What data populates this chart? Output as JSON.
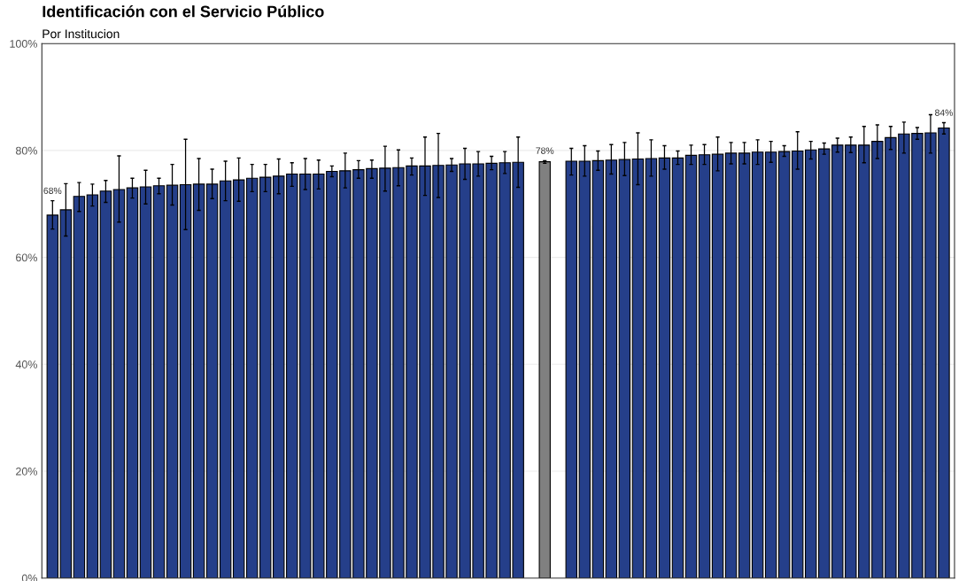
{
  "chart_data": {
    "type": "bar",
    "title": "Identificación con el Servicio Público",
    "subtitle": "Por Institucion",
    "categories": [
      null,
      null,
      null,
      null,
      null,
      null,
      null,
      null,
      null,
      null,
      null,
      null,
      null,
      null,
      null,
      null,
      null,
      null,
      null,
      null,
      null,
      null,
      null,
      null,
      null,
      null,
      null,
      null,
      null,
      null,
      null,
      null,
      null,
      null,
      null,
      null,
      null,
      null,
      null,
      null,
      null,
      null,
      null,
      null,
      null,
      null,
      null,
      null,
      null,
      null,
      null,
      null,
      null,
      null,
      null,
      null,
      null,
      null,
      null,
      null,
      null,
      null,
      null,
      null,
      null,
      null,
      null,
      null
    ],
    "values": [
      67.9,
      68.9,
      71.4,
      71.7,
      72.4,
      72.7,
      73.0,
      73.2,
      73.4,
      73.5,
      73.6,
      73.7,
      73.7,
      74.3,
      74.5,
      74.8,
      75.0,
      75.2,
      75.6,
      75.6,
      75.6,
      76.1,
      76.2,
      76.4,
      76.6,
      76.7,
      76.8,
      77.1,
      77.1,
      77.2,
      77.3,
      77.5,
      77.5,
      77.6,
      77.7,
      77.8,
      null,
      77.9,
      null,
      78.0,
      78.0,
      78.1,
      78.2,
      78.3,
      78.4,
      78.5,
      78.6,
      78.6,
      79.1,
      79.2,
      79.3,
      79.5,
      79.5,
      79.7,
      79.7,
      79.8,
      79.9,
      80.1,
      80.3,
      81.0,
      81.0,
      81.0,
      81.7,
      82.4,
      83.1,
      83.2,
      83.3,
      84.2
    ],
    "errors": [
      [
        65.3,
        70.6
      ],
      [
        64.0,
        73.8
      ],
      [
        68.6,
        74.0
      ],
      [
        69.6,
        73.7
      ],
      [
        70.3,
        74.4
      ],
      [
        66.6,
        79.0
      ],
      [
        71.1,
        74.8
      ],
      [
        70.0,
        76.3
      ],
      [
        71.9,
        74.8
      ],
      [
        69.8,
        77.4
      ],
      [
        65.2,
        82.1
      ],
      [
        68.8,
        78.5
      ],
      [
        71.0,
        76.5
      ],
      [
        70.6,
        78.0
      ],
      [
        70.5,
        78.6
      ],
      [
        72.3,
        77.4
      ],
      [
        72.3,
        77.4
      ],
      [
        71.9,
        78.4
      ],
      [
        73.3,
        77.7
      ],
      [
        72.7,
        78.5
      ],
      [
        72.8,
        78.2
      ],
      [
        75.1,
        77.1
      ],
      [
        73.0,
        79.5
      ],
      [
        74.8,
        78.1
      ],
      [
        74.8,
        78.2
      ],
      [
        72.4,
        80.8
      ],
      [
        73.4,
        80.1
      ],
      [
        75.4,
        78.6
      ],
      [
        71.6,
        82.5
      ],
      [
        71.2,
        83.2
      ],
      [
        76.1,
        78.5
      ],
      [
        74.6,
        80.4
      ],
      [
        75.2,
        79.8
      ],
      [
        76.4,
        78.9
      ],
      [
        75.7,
        79.8
      ],
      [
        73.1,
        82.5
      ],
      null,
      [
        77.6,
        78.1
      ],
      null,
      [
        75.4,
        80.4
      ],
      [
        75.2,
        80.9
      ],
      [
        76.3,
        79.9
      ],
      [
        75.6,
        81.1
      ],
      [
        75.3,
        81.5
      ],
      [
        73.6,
        83.3
      ],
      [
        75.2,
        82.0
      ],
      [
        76.5,
        80.9
      ],
      [
        77.4,
        79.9
      ],
      [
        77.4,
        81.0
      ],
      [
        77.4,
        81.1
      ],
      [
        76.2,
        82.5
      ],
      [
        77.5,
        81.5
      ],
      [
        77.5,
        81.5
      ],
      [
        77.4,
        82.0
      ],
      [
        77.8,
        81.7
      ],
      [
        78.9,
        80.9
      ],
      [
        76.5,
        83.5
      ],
      [
        78.4,
        81.7
      ],
      [
        79.3,
        81.4
      ],
      [
        79.7,
        82.3
      ],
      [
        79.6,
        82.5
      ],
      [
        77.7,
        84.5
      ],
      [
        78.5,
        84.8
      ],
      [
        80.2,
        84.5
      ],
      [
        79.5,
        85.3
      ],
      [
        82.1,
        84.3
      ],
      [
        79.5,
        86.7
      ],
      [
        83.1,
        85.2
      ]
    ],
    "colors": [
      "#253f8a",
      "#253f8a",
      "#253f8a",
      "#253f8a",
      "#253f8a",
      "#253f8a",
      "#253f8a",
      "#253f8a",
      "#253f8a",
      "#253f8a",
      "#253f8a",
      "#253f8a",
      "#253f8a",
      "#253f8a",
      "#253f8a",
      "#253f8a",
      "#253f8a",
      "#253f8a",
      "#253f8a",
      "#253f8a",
      "#253f8a",
      "#253f8a",
      "#253f8a",
      "#253f8a",
      "#253f8a",
      "#253f8a",
      "#253f8a",
      "#253f8a",
      "#253f8a",
      "#253f8a",
      "#253f8a",
      "#253f8a",
      "#253f8a",
      "#253f8a",
      "#253f8a",
      "#253f8a",
      "#253f8a",
      "#808080",
      "#253f8a",
      "#253f8a",
      "#253f8a",
      "#253f8a",
      "#253f8a",
      "#253f8a",
      "#253f8a",
      "#253f8a",
      "#253f8a",
      "#253f8a",
      "#253f8a",
      "#253f8a",
      "#253f8a",
      "#253f8a",
      "#253f8a",
      "#253f8a",
      "#253f8a",
      "#253f8a",
      "#253f8a",
      "#253f8a",
      "#253f8a",
      "#253f8a",
      "#253f8a",
      "#253f8a",
      "#253f8a",
      "#253f8a",
      "#253f8a",
      "#253f8a",
      "#253f8a",
      "#253f8a"
    ],
    "value_labels": [
      "68%",
      null,
      null,
      null,
      null,
      null,
      null,
      null,
      null,
      null,
      null,
      null,
      null,
      null,
      null,
      null,
      null,
      null,
      null,
      null,
      null,
      null,
      null,
      null,
      null,
      null,
      null,
      null,
      null,
      null,
      null,
      null,
      null,
      null,
      null,
      null,
      null,
      "78%",
      null,
      null,
      null,
      null,
      null,
      null,
      null,
      null,
      null,
      null,
      null,
      null,
      null,
      null,
      null,
      null,
      null,
      null,
      null,
      null,
      null,
      null,
      null,
      null,
      null,
      null,
      null,
      null,
      null,
      "84%"
    ],
    "ylim": [
      0,
      100
    ],
    "yticks": [
      {
        "value": 0,
        "label": "0%"
      },
      {
        "value": 20,
        "label": "20%"
      },
      {
        "value": 40,
        "label": "40%"
      },
      {
        "value": 60,
        "label": "60%"
      },
      {
        "value": 80,
        "label": "80%"
      },
      {
        "value": 100,
        "label": "100%"
      }
    ],
    "grid": "y",
    "tick_labels": "y"
  }
}
